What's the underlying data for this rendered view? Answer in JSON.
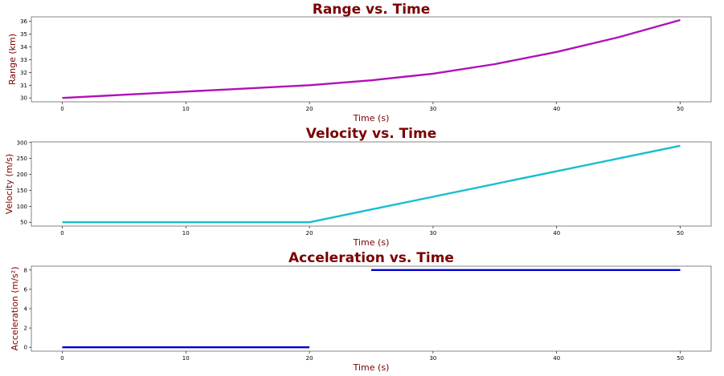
{
  "chart_data": [
    {
      "type": "line",
      "title": "Range vs. Time",
      "xlabel": "Time (s)",
      "ylabel": "Range (km)",
      "xlim": [
        -2.5,
        52.5
      ],
      "ylim": [
        29.7,
        36.35
      ],
      "xticks": [
        0,
        10,
        20,
        30,
        40,
        50
      ],
      "yticks": [
        30,
        31,
        32,
        33,
        34,
        35,
        36
      ],
      "series": [
        {
          "color": "#b010b8",
          "segments": [
            {
              "x": [
                0,
                5,
                10,
                15,
                20,
                25,
                30,
                35,
                40,
                45,
                50
              ],
              "y": [
                30.0,
                30.25,
                30.5,
                30.75,
                31.0,
                31.38,
                31.9,
                32.65,
                33.6,
                34.75,
                36.1
              ]
            }
          ]
        }
      ]
    },
    {
      "type": "line",
      "title": "Velocity vs. Time",
      "xlabel": "Time (s)",
      "ylabel": "Velocity (m/s)",
      "xlim": [
        -2.5,
        52.5
      ],
      "ylim": [
        38,
        302
      ],
      "xticks": [
        0,
        10,
        20,
        30,
        40,
        50
      ],
      "yticks": [
        50,
        100,
        150,
        200,
        250,
        300
      ],
      "series": [
        {
          "color": "#17becf",
          "segments": [
            {
              "x": [
                0,
                20,
                50
              ],
              "y": [
                50,
                50,
                290
              ]
            }
          ]
        }
      ]
    },
    {
      "type": "line",
      "title": "Acceleration vs. Time",
      "xlabel": "Time (s)",
      "ylabel": "Acceleration (m/s²)",
      "xlim": [
        -2.5,
        52.5
      ],
      "ylim": [
        -0.4,
        8.4
      ],
      "xticks": [
        0,
        10,
        20,
        30,
        40,
        50
      ],
      "yticks": [
        0,
        2,
        4,
        6,
        8
      ],
      "series": [
        {
          "color": "#0000cc",
          "segments": [
            {
              "x": [
                0,
                20
              ],
              "y": [
                0,
                0
              ]
            },
            {
              "x": [
                25,
                50
              ],
              "y": [
                8,
                8
              ]
            }
          ]
        }
      ]
    }
  ]
}
